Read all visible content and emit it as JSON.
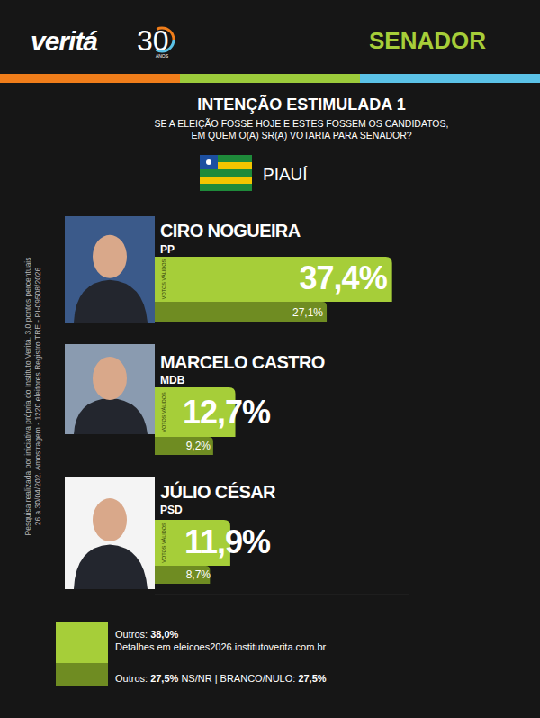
{
  "logo": {
    "name": "veritá",
    "years": "30",
    "years_label": "ANOS"
  },
  "header": {
    "section": "SENADOR"
  },
  "region": "PIAUÍ",
  "side_note": [
    "Pesquisa realizada por iniciativa própria do Instituto Veritá. 3,0 pontos percentuais",
    "26 a 30/04/202. Amostragem - 1220 eleitores Registro TRE - PI-09508/2026"
  ],
  "parties": [
    "PP",
    "MDB",
    "PSD"
  ],
  "footer": {
    "valid_label": "Outros:",
    "valid_value": "38,0%",
    "details": "Detalhes em eleicoes2026.institutoverita.com.br",
    "total_items": [
      {
        "label": "Outros:",
        "value": "27,5%"
      },
      {
        "label": "NS/NR  |  BRANCO/NULO:",
        "value": "27,5%"
      }
    ]
  },
  "chart_data": {
    "type": "bar",
    "orientation": "horizontal",
    "title": "INTENÇÃO ESTIMULADA 1",
    "subtitle": [
      "SE A ELEIÇÃO FOSSE HOJE E ESTES FOSSEM OS CANDIDATOS,",
      "EM QUEM O(A) SR(A) VOTARIA PARA SENADOR?"
    ],
    "categories": [
      "CIRO NOGUEIRA",
      "MARCELO CASTRO",
      "JÚLIO CÉSAR"
    ],
    "series": [
      {
        "name": "VOTOS VÁLIDOS",
        "color": "#a6ce39",
        "values": [
          37.4,
          12.7,
          11.9
        ],
        "value_labels": [
          "37,4%",
          "12,7%",
          "11,9%"
        ]
      },
      {
        "color": "#6f8c22",
        "values": [
          27.1,
          9.2,
          8.7
        ],
        "value_labels": [
          "27,1%",
          "9,2%",
          "8,7%"
        ]
      }
    ],
    "xlim": [
      0,
      40
    ],
    "data_labels": true,
    "tick_labels": false,
    "grid": false
  }
}
